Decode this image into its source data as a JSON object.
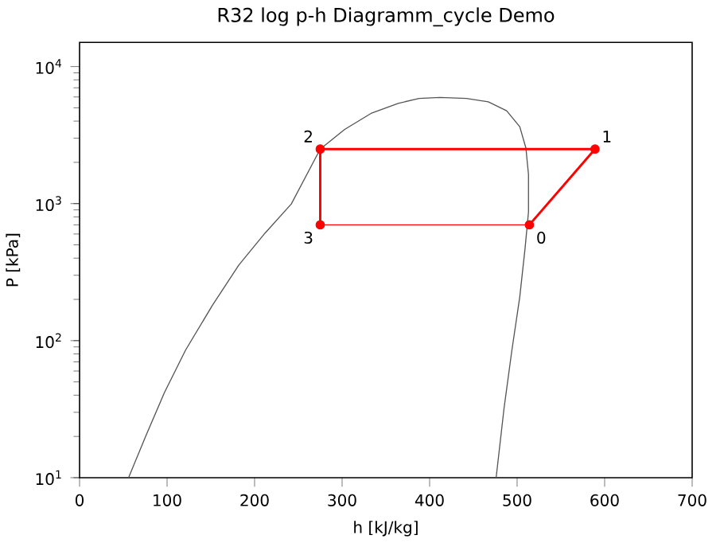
{
  "chart_data": {
    "type": "line",
    "title": "R32 log p-h Diagramm_cycle Demo",
    "xlabel": "h [kJ/kg]",
    "ylabel": "P [kPa]",
    "log": "y",
    "xlim": [
      0,
      700
    ],
    "ylim": [
      10,
      15000
    ],
    "xticks": [
      0,
      100,
      200,
      300,
      400,
      500,
      600,
      700
    ],
    "yticks": [
      {
        "value": 10,
        "label": "10$^{1}$"
      },
      {
        "value": 100,
        "label": "10$^{2}$"
      },
      {
        "value": 1000,
        "label": "10$^{3}$"
      },
      {
        "value": 10000,
        "label": "10$^{4}$"
      }
    ],
    "series": [
      {
        "color": "#555555",
        "marker": "none",
        "x": [
          56,
          76,
          97,
          121,
          152,
          182,
          212,
          242,
          275,
          303,
          333,
          364,
          388,
          412,
          442,
          467,
          488,
          503,
          510,
          513,
          513,
          509,
          503,
          494,
          485,
          476
        ],
        "values": [
          10,
          20.4,
          41.8,
          85,
          182,
          356,
          610,
          995,
          2500,
          3480,
          4550,
          5390,
          5850,
          5950,
          5850,
          5530,
          4760,
          3640,
          2550,
          1630,
          871,
          467,
          208,
          85,
          31.9,
          10
        ]
      },
      {
        "color": "#ff0000",
        "marker": "circle",
        "x": [
          514,
          589,
          275,
          275
        ],
        "values": [
          700,
          2500,
          2500,
          700
        ]
      },
      {
        "color": "#ff0000",
        "marker": "none",
        "x": [
          275,
          514
        ],
        "values": [
          700,
          700
        ]
      }
    ],
    "annotations": [
      {
        "text": "0",
        "x": 514,
        "y": 700
      },
      {
        "text": "1",
        "x": 589,
        "y": 2500
      },
      {
        "text": "2",
        "x": 275,
        "y": 2500
      },
      {
        "text": "3",
        "x": 275,
        "y": 700
      }
    ]
  }
}
